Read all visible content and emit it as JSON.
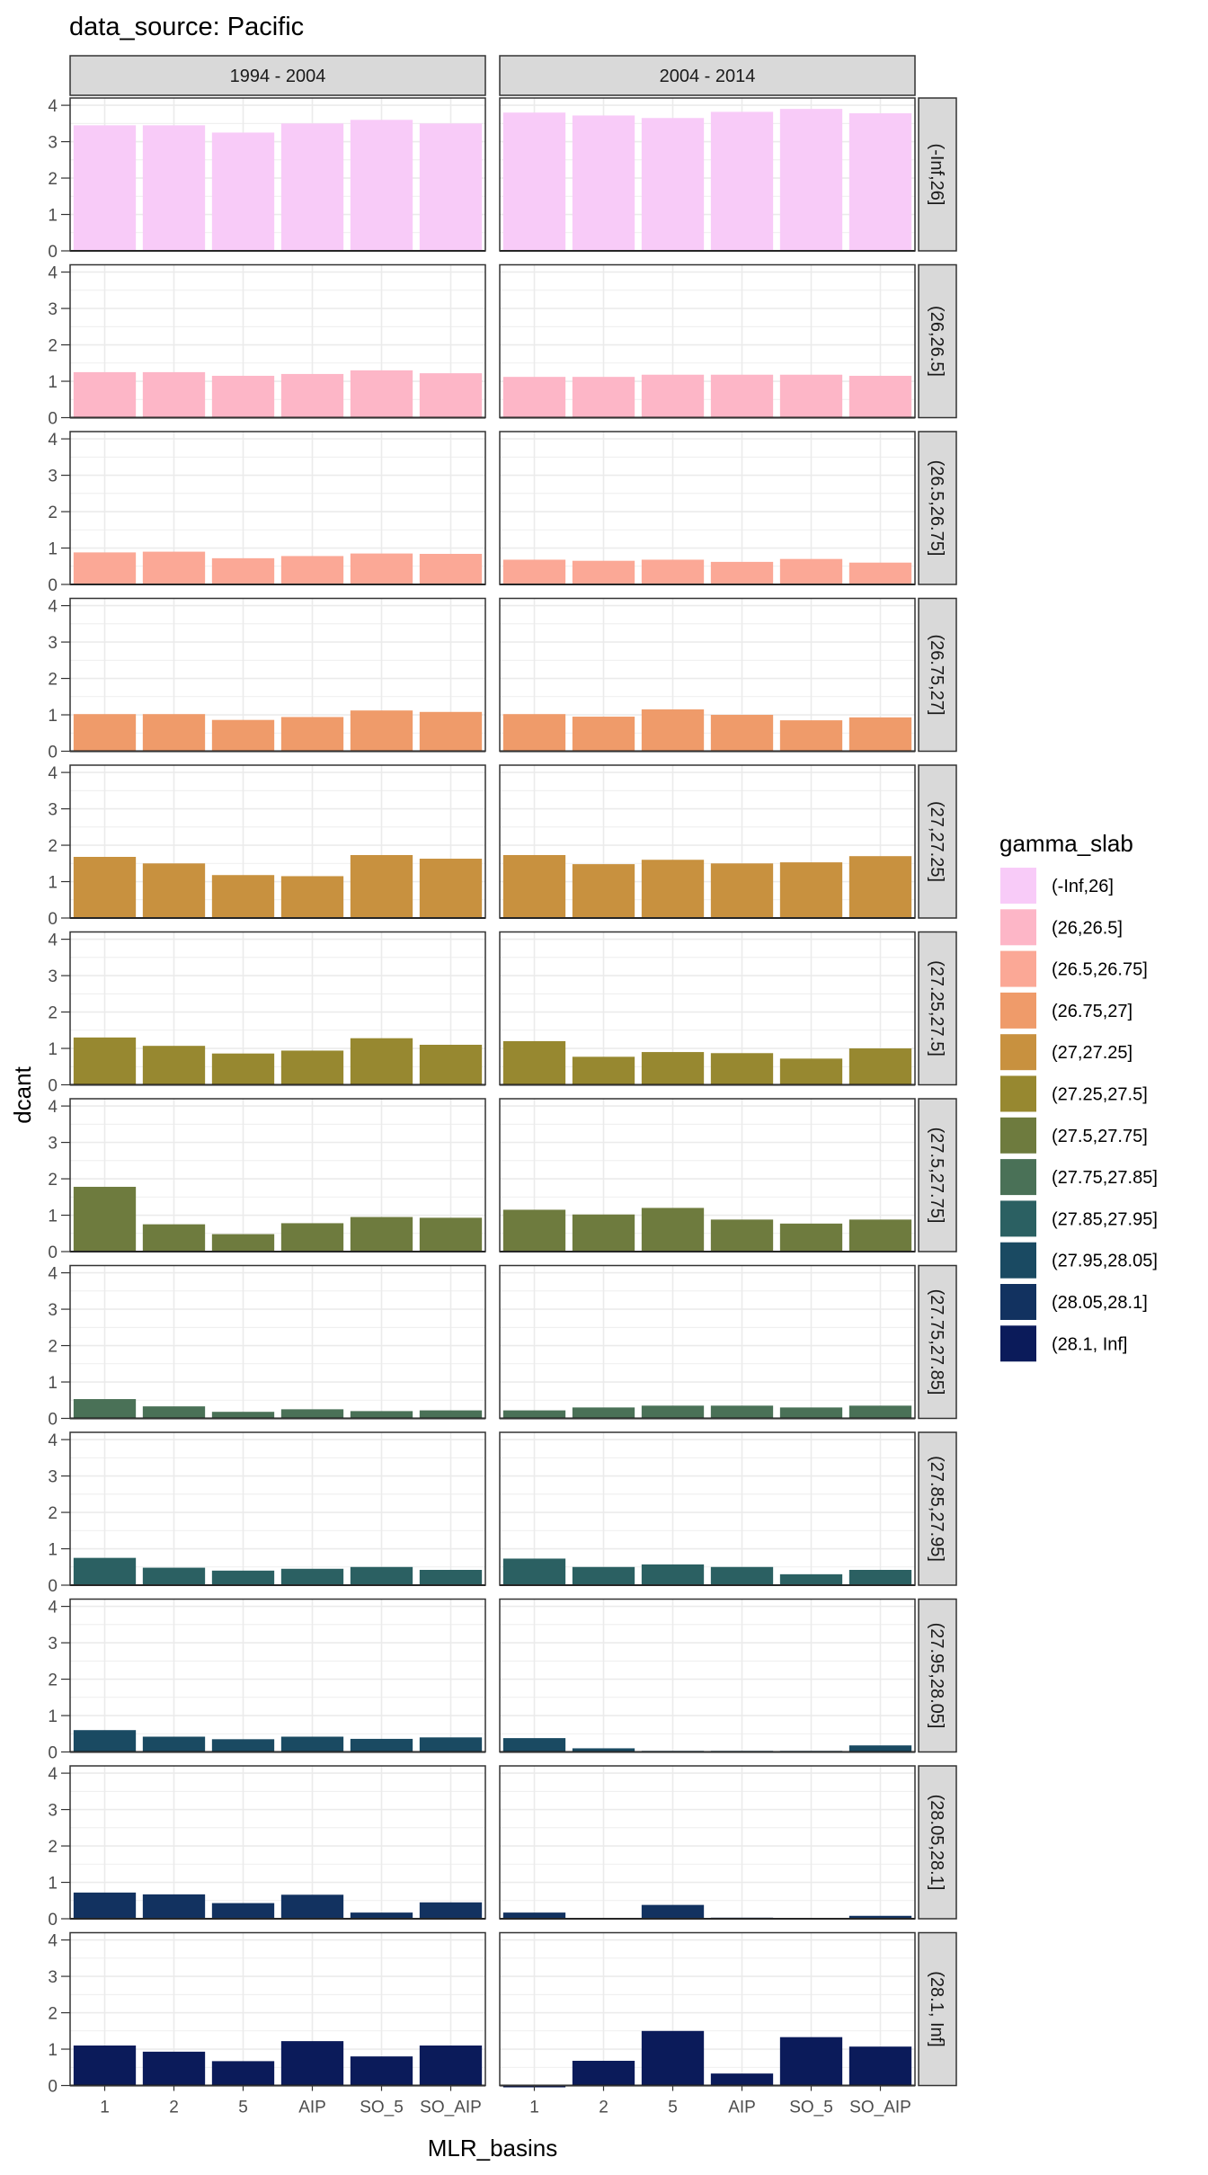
{
  "chart_data": {
    "type": "bar",
    "title": "data_source: Pacific",
    "xlabel": "MLR_basins",
    "ylabel": "dcant",
    "ylim": [
      0,
      4.2
    ],
    "yticks": [
      "0",
      "1",
      "2",
      "3",
      "4"
    ],
    "grid": true,
    "legend_placement": "right",
    "legend_title": "gamma_slab",
    "categories": [
      "1",
      "2",
      "5",
      "AIP",
      "SO_5",
      "SO_AIP"
    ],
    "columns": [
      "1994 - 2004",
      "2004 - 2014"
    ],
    "rows": [
      {
        "label": "(-Inf,26]",
        "color": "#F8CBF8",
        "values": [
          [
            3.45,
            3.45,
            3.25,
            3.5,
            3.6,
            3.5
          ],
          [
            3.8,
            3.72,
            3.65,
            3.82,
            3.9,
            3.78
          ]
        ]
      },
      {
        "label": "(26,26.5]",
        "color": "#FDB6C7",
        "values": [
          [
            1.25,
            1.25,
            1.15,
            1.2,
            1.3,
            1.22
          ],
          [
            1.12,
            1.12,
            1.18,
            1.18,
            1.18,
            1.15
          ]
        ]
      },
      {
        "label": "(26.5,26.75]",
        "color": "#FBA896",
        "values": [
          [
            0.88,
            0.9,
            0.72,
            0.78,
            0.85,
            0.84
          ],
          [
            0.68,
            0.65,
            0.68,
            0.62,
            0.7,
            0.6
          ]
        ]
      },
      {
        "label": "(26.75,27]",
        "color": "#EF9B6A",
        "values": [
          [
            1.02,
            1.02,
            0.86,
            0.94,
            1.12,
            1.08
          ],
          [
            1.02,
            0.95,
            1.15,
            1.0,
            0.85,
            0.93
          ]
        ]
      },
      {
        "label": "(27,27.25]",
        "color": "#C8913F",
        "values": [
          [
            1.68,
            1.5,
            1.18,
            1.15,
            1.73,
            1.63
          ],
          [
            1.73,
            1.48,
            1.6,
            1.5,
            1.53,
            1.7
          ]
        ]
      },
      {
        "label": "(27.25,27.5]",
        "color": "#978830",
        "values": [
          [
            1.3,
            1.07,
            0.86,
            0.94,
            1.28,
            1.1
          ],
          [
            1.2,
            0.77,
            0.9,
            0.87,
            0.72,
            1.0
          ]
        ]
      },
      {
        "label": "(27.5,27.75]",
        "color": "#6E7B3E",
        "values": [
          [
            1.78,
            0.75,
            0.48,
            0.78,
            0.95,
            0.93
          ],
          [
            1.15,
            1.02,
            1.2,
            0.88,
            0.77,
            0.88
          ]
        ]
      },
      {
        "label": "(27.75,27.85]",
        "color": "#4A7157",
        "values": [
          [
            0.53,
            0.33,
            0.18,
            0.25,
            0.2,
            0.22
          ],
          [
            0.22,
            0.3,
            0.35,
            0.35,
            0.3,
            0.35
          ]
        ]
      },
      {
        "label": "(27.85,27.95]",
        "color": "#2B6062",
        "values": [
          [
            0.75,
            0.48,
            0.4,
            0.45,
            0.5,
            0.42
          ],
          [
            0.73,
            0.5,
            0.57,
            0.5,
            0.3,
            0.42
          ]
        ]
      },
      {
        "label": "(27.95,28.05]",
        "color": "#1A4A62",
        "values": [
          [
            0.6,
            0.42,
            0.35,
            0.42,
            0.36,
            0.4
          ],
          [
            0.38,
            0.1,
            0.03,
            0.03,
            0.03,
            0.18
          ]
        ]
      },
      {
        "label": "(28.05,28.1]",
        "color": "#123260",
        "values": [
          [
            0.72,
            0.67,
            0.43,
            0.66,
            0.17,
            0.45
          ],
          [
            0.17,
            0.02,
            0.38,
            0.03,
            0.02,
            0.08
          ]
        ]
      },
      {
        "label": "(28.1, Inf]",
        "color": "#0B1B5A",
        "values": [
          [
            1.1,
            0.93,
            0.67,
            1.22,
            0.8,
            1.1
          ],
          [
            -0.05,
            0.68,
            1.5,
            0.33,
            1.33,
            1.07
          ]
        ]
      }
    ]
  }
}
